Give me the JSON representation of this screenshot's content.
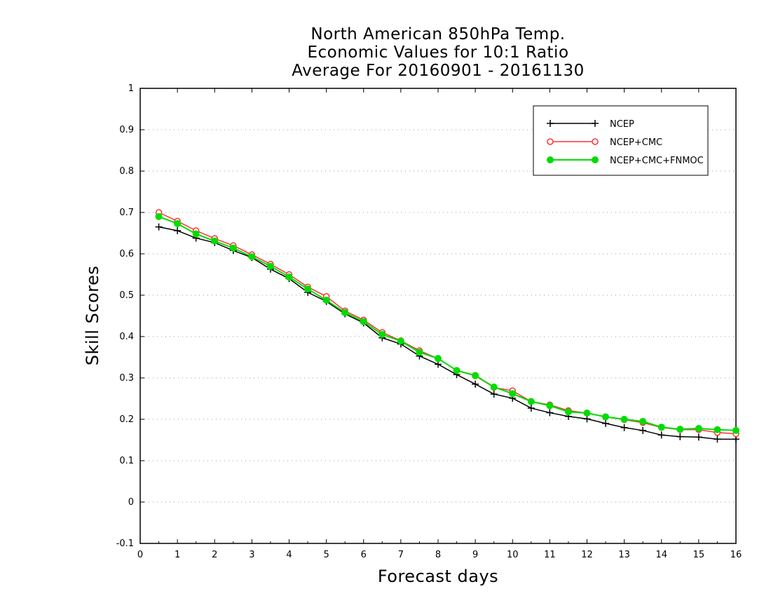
{
  "chart_data": {
    "type": "line",
    "title": [
      "North American 850hPa Temp.",
      "Economic Values for 10:1 Ratio",
      "Average For 20160901 - 20161130"
    ],
    "xlabel": "Forecast days",
    "ylabel": "Skill Scores",
    "xlim": [
      0,
      16
    ],
    "ylim": [
      -0.1,
      1
    ],
    "xticks": [
      "0",
      "1",
      "2",
      "3",
      "4",
      "5",
      "6",
      "7",
      "8",
      "9",
      "10",
      "11",
      "12",
      "13",
      "14",
      "15",
      "16"
    ],
    "yticks": [
      "-0.1",
      "0",
      "0.1",
      "0.2",
      "0.3",
      "0.4",
      "0.5",
      "0.6",
      "0.7",
      "0.8",
      "0.9",
      "1"
    ],
    "grid": "horizontal dotted",
    "legend_position": "top-right",
    "x": [
      0.5,
      1,
      1.5,
      2,
      2.5,
      3,
      3.5,
      4,
      4.5,
      5,
      5.5,
      6,
      6.5,
      7,
      7.5,
      8,
      8.5,
      9,
      9.5,
      10,
      10.5,
      11,
      11.5,
      12,
      12.5,
      13,
      13.5,
      14,
      14.5,
      15,
      15.5,
      16
    ],
    "series": [
      {
        "name": "NCEP",
        "color": "#000000",
        "marker": "plus",
        "values": [
          0.665,
          0.656,
          0.638,
          0.627,
          0.608,
          0.591,
          0.563,
          0.54,
          0.507,
          0.485,
          0.455,
          0.433,
          0.397,
          0.382,
          0.353,
          0.333,
          0.308,
          0.285,
          0.261,
          0.251,
          0.227,
          0.216,
          0.207,
          0.201,
          0.19,
          0.18,
          0.173,
          0.162,
          0.158,
          0.157,
          0.152,
          0.152
        ]
      },
      {
        "name": "NCEP+CMC",
        "color": "#ff3333",
        "marker": "open-circle",
        "values": [
          0.7,
          0.679,
          0.656,
          0.637,
          0.62,
          0.598,
          0.575,
          0.55,
          0.52,
          0.497,
          0.462,
          0.44,
          0.41,
          0.39,
          0.366,
          0.347,
          0.318,
          0.305,
          0.277,
          0.269,
          0.243,
          0.235,
          0.221,
          0.215,
          0.206,
          0.199,
          0.192,
          0.18,
          0.175,
          0.175,
          0.168,
          0.165
        ]
      },
      {
        "name": "NCEP+CMC+FNMOC",
        "color": "#00dd00",
        "marker": "filled-circle",
        "values": [
          0.69,
          0.673,
          0.648,
          0.631,
          0.614,
          0.593,
          0.57,
          0.544,
          0.515,
          0.488,
          0.458,
          0.436,
          0.405,
          0.389,
          0.362,
          0.347,
          0.318,
          0.306,
          0.278,
          0.262,
          0.243,
          0.233,
          0.218,
          0.215,
          0.206,
          0.2,
          0.195,
          0.181,
          0.176,
          0.178,
          0.175,
          0.173
        ]
      }
    ]
  }
}
